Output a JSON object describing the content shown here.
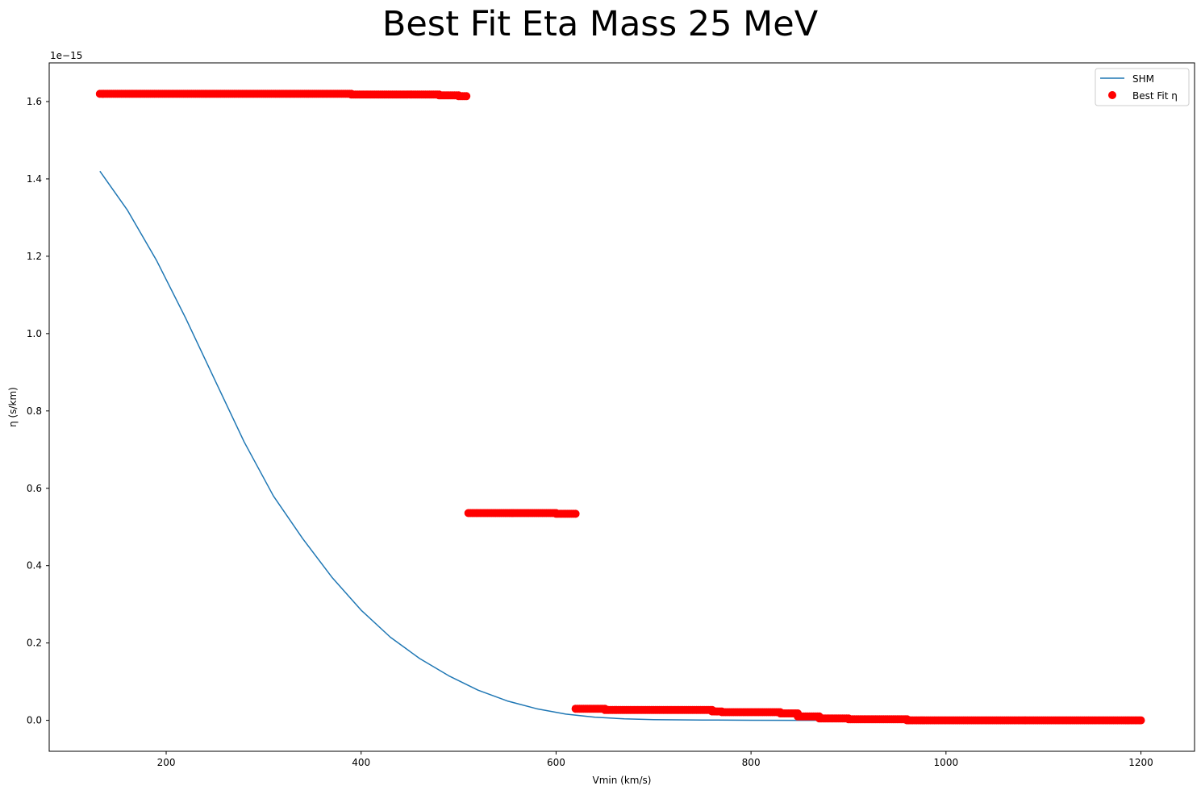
{
  "chart_data": {
    "type": "scatter",
    "title": "Best Fit Eta Mass 25 MeV",
    "xlabel": "Vmin (km/s)",
    "ylabel": "η (s/km)",
    "y_offset_label": "1e−15",
    "xlim": [
      80,
      1255
    ],
    "ylim": [
      -0.08,
      1.7
    ],
    "x_ticks": [
      200,
      400,
      600,
      800,
      1000,
      1200
    ],
    "x_tick_labels": [
      "200",
      "400",
      "600",
      "800",
      "1000",
      "1200"
    ],
    "y_ticks": [
      0.0,
      0.2,
      0.4,
      0.6,
      0.8,
      1.0,
      1.2,
      1.4,
      1.6
    ],
    "y_tick_labels": [
      "0.0",
      "0.2",
      "0.4",
      "0.6",
      "0.8",
      "1.0",
      "1.2",
      "1.4",
      "1.6"
    ],
    "grid": false,
    "legend_position": "top-right",
    "series": [
      {
        "name": "SHM",
        "kind": "line",
        "color": "#1f77b4",
        "x": [
          132,
          160,
          190,
          220,
          250,
          280,
          310,
          340,
          370,
          400,
          430,
          460,
          490,
          520,
          550,
          580,
          610,
          640,
          670,
          700,
          750,
          800,
          850,
          900,
          1000,
          1100,
          1200
        ],
        "y": [
          1.42,
          1.32,
          1.19,
          1.04,
          0.88,
          0.72,
          0.58,
          0.47,
          0.37,
          0.285,
          0.215,
          0.16,
          0.115,
          0.078,
          0.05,
          0.03,
          0.016,
          0.008,
          0.004,
          0.002,
          0.0008,
          0.0003,
          0.0001,
          0.0,
          0.0,
          0.0,
          0.0
        ]
      },
      {
        "name": "Best Fit η",
        "kind": "scatter",
        "color": "#ff0000",
        "segments": [
          {
            "x": [
              132,
              390
            ],
            "y": 1.62
          },
          {
            "x": [
              390,
              480
            ],
            "y": 1.618
          },
          {
            "x": [
              480,
              500
            ],
            "y": 1.616
          },
          {
            "x": [
              500,
              508
            ],
            "y": 1.614
          },
          {
            "x": [
              510,
              600
            ],
            "y": 0.536
          },
          {
            "x": [
              600,
              620
            ],
            "y": 0.534
          },
          {
            "x": [
              620,
              650
            ],
            "y": 0.03
          },
          {
            "x": [
              650,
              760
            ],
            "y": 0.027
          },
          {
            "x": [
              760,
              770
            ],
            "y": 0.023
          },
          {
            "x": [
              770,
              830
            ],
            "y": 0.021
          },
          {
            "x": [
              830,
              848
            ],
            "y": 0.018
          },
          {
            "x": [
              848,
              870
            ],
            "y": 0.01
          },
          {
            "x": [
              870,
              900
            ],
            "y": 0.005
          },
          {
            "x": [
              900,
              960
            ],
            "y": 0.003
          },
          {
            "x": [
              960,
              1200
            ],
            "y": 0.0
          }
        ]
      }
    ]
  }
}
